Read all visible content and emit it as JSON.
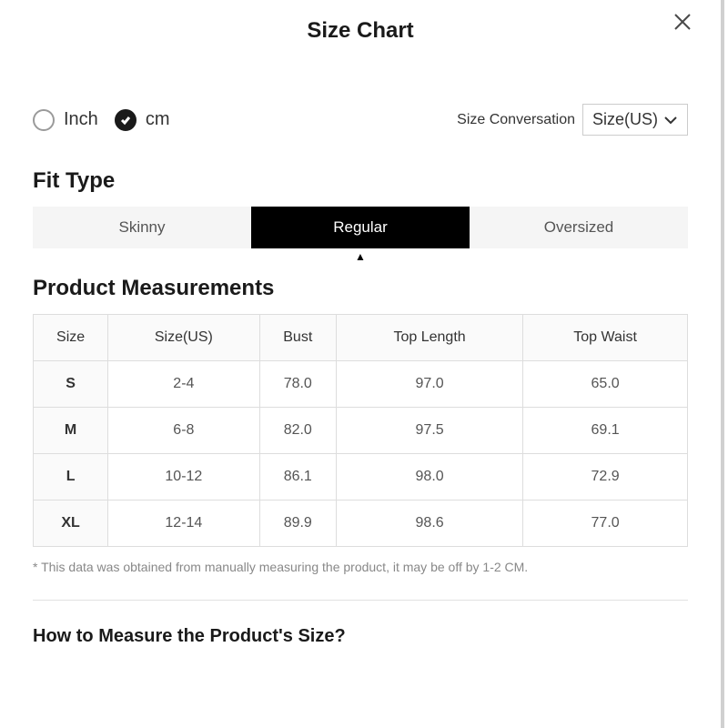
{
  "modal": {
    "title": "Size Chart"
  },
  "units": {
    "options": [
      {
        "label": "Inch",
        "selected": false
      },
      {
        "label": "cm",
        "selected": true
      }
    ]
  },
  "conversation": {
    "label": "Size Conversation",
    "selected": "Size(US)"
  },
  "fit": {
    "heading": "Fit Type",
    "tabs": [
      {
        "label": "Skinny",
        "active": false
      },
      {
        "label": "Regular",
        "active": true
      },
      {
        "label": "Oversized",
        "active": false
      }
    ]
  },
  "measurements": {
    "heading": "Product Measurements",
    "columns": [
      "Size",
      "Size(US)",
      "Bust",
      "Top Length",
      "Top Waist"
    ],
    "rows": [
      [
        "S",
        "2-4",
        "78.0",
        "97.0",
        "65.0"
      ],
      [
        "M",
        "6-8",
        "82.0",
        "97.5",
        "69.1"
      ],
      [
        "L",
        "10-12",
        "86.1",
        "98.0",
        "72.9"
      ],
      [
        "XL",
        "12-14",
        "89.9",
        "98.6",
        "77.0"
      ]
    ],
    "disclaimer": "* This data was obtained from manually measuring the product, it may be off by 1-2 CM."
  },
  "howto": {
    "heading": "How to Measure the Product's Size?"
  },
  "colors": {
    "text_primary": "#1a1a1a",
    "text_secondary": "#555555",
    "text_muted": "#888888",
    "border": "#dddddd",
    "tab_inactive_bg": "#f5f5f5",
    "tab_active_bg": "#000000",
    "tab_active_text": "#ffffff",
    "header_bg": "#fafafa",
    "radio_border": "#9a9a9a",
    "radio_selected": "#1a1a1a",
    "close_stroke": "#4a4a4a",
    "scrollbar": "#d0d0d0",
    "divider": "#e2e2e2"
  },
  "typography": {
    "title_size": 24,
    "heading_size": 24,
    "body_size": 16,
    "radio_label_size": 20,
    "tab_size": 17,
    "disclaimer_size": 14,
    "howto_size": 20
  }
}
